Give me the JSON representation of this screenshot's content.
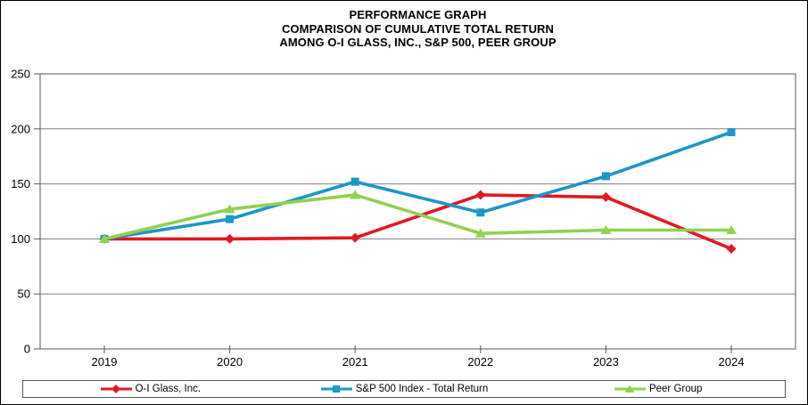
{
  "window": {
    "background": "#ffffff",
    "border_color": "#000000"
  },
  "chart_data": {
    "type": "line",
    "title_lines": [
      "PERFORMANCE GRAPH",
      "COMPARISON OF CUMULATIVE TOTAL RETURN",
      "AMONG O-I GLASS, INC., S&P 500, PEER GROUP"
    ],
    "categories": [
      "2019",
      "2020",
      "2021",
      "2022",
      "2023",
      "2024"
    ],
    "series": [
      {
        "name": "O-I Glass, Inc.",
        "color": "#e01a22",
        "marker": "diamond",
        "values": [
          100,
          100,
          101,
          140,
          138,
          91
        ]
      },
      {
        "name": "S&P 500 Index - Total Return",
        "color": "#1e96c8",
        "marker": "square",
        "values": [
          100,
          118,
          152,
          124,
          157,
          197
        ]
      },
      {
        "name": "Peer Group",
        "color": "#92d050",
        "marker": "triangle",
        "values": [
          100,
          127,
          140,
          105,
          108,
          108
        ]
      }
    ],
    "y_ticks": [
      0,
      50,
      100,
      150,
      200,
      250
    ],
    "ylim": [
      0,
      250
    ],
    "xlabel": "",
    "ylabel": "",
    "grid": true,
    "grid_color": "#808080",
    "axis_color": "#595959",
    "legend_position": "bottom"
  }
}
